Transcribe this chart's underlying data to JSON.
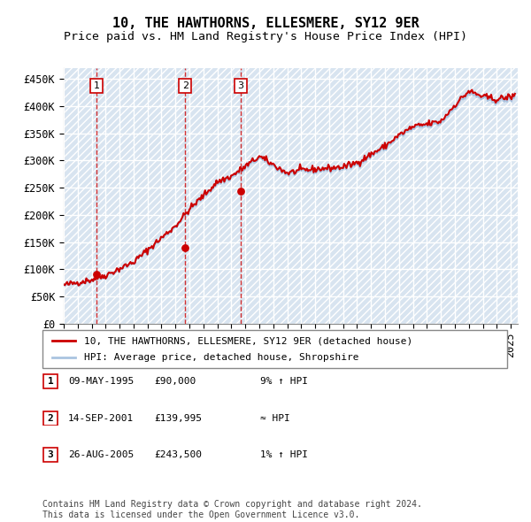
{
  "title": "10, THE HAWTHORNS, ELLESMERE, SY12 9ER",
  "subtitle": "Price paid vs. HM Land Registry's House Price Index (HPI)",
  "ylabel_ticks": [
    "£0",
    "£50K",
    "£100K",
    "£150K",
    "£200K",
    "£250K",
    "£300K",
    "£350K",
    "£400K",
    "£450K"
  ],
  "ytick_vals": [
    0,
    50000,
    100000,
    150000,
    200000,
    250000,
    300000,
    350000,
    400000,
    450000
  ],
  "ylim": [
    0,
    470000
  ],
  "xlim_start": 1993.0,
  "xlim_end": 2025.5,
  "sale_dates_num": [
    1995.35,
    2001.7,
    2005.65
  ],
  "sale_prices": [
    90000,
    139995,
    243500
  ],
  "sale_labels": [
    "1",
    "2",
    "3"
  ],
  "hpi_line_color": "#aac4e0",
  "price_line_color": "#cc0000",
  "sale_dot_color": "#cc0000",
  "sale_label_box_color": "#cc0000",
  "bg_hatch_color": "#d8e4f0",
  "grid_color": "#ffffff",
  "plot_bg_color": "#dce9f5",
  "legend_label_price": "10, THE HAWTHORNS, ELLESMERE, SY12 9ER (detached house)",
  "legend_label_hpi": "HPI: Average price, detached house, Shropshire",
  "table_rows": [
    [
      "1",
      "09-MAY-1995",
      "£90,000",
      "9% ↑ HPI"
    ],
    [
      "2",
      "14-SEP-2001",
      "£139,995",
      "≈ HPI"
    ],
    [
      "3",
      "26-AUG-2005",
      "£243,500",
      "1% ↑ HPI"
    ]
  ],
  "footer_text": "Contains HM Land Registry data © Crown copyright and database right 2024.\nThis data is licensed under the Open Government Licence v3.0.",
  "title_fontsize": 11,
  "subtitle_fontsize": 9.5,
  "tick_fontsize": 8.5,
  "legend_fontsize": 8,
  "table_fontsize": 8,
  "footer_fontsize": 7
}
